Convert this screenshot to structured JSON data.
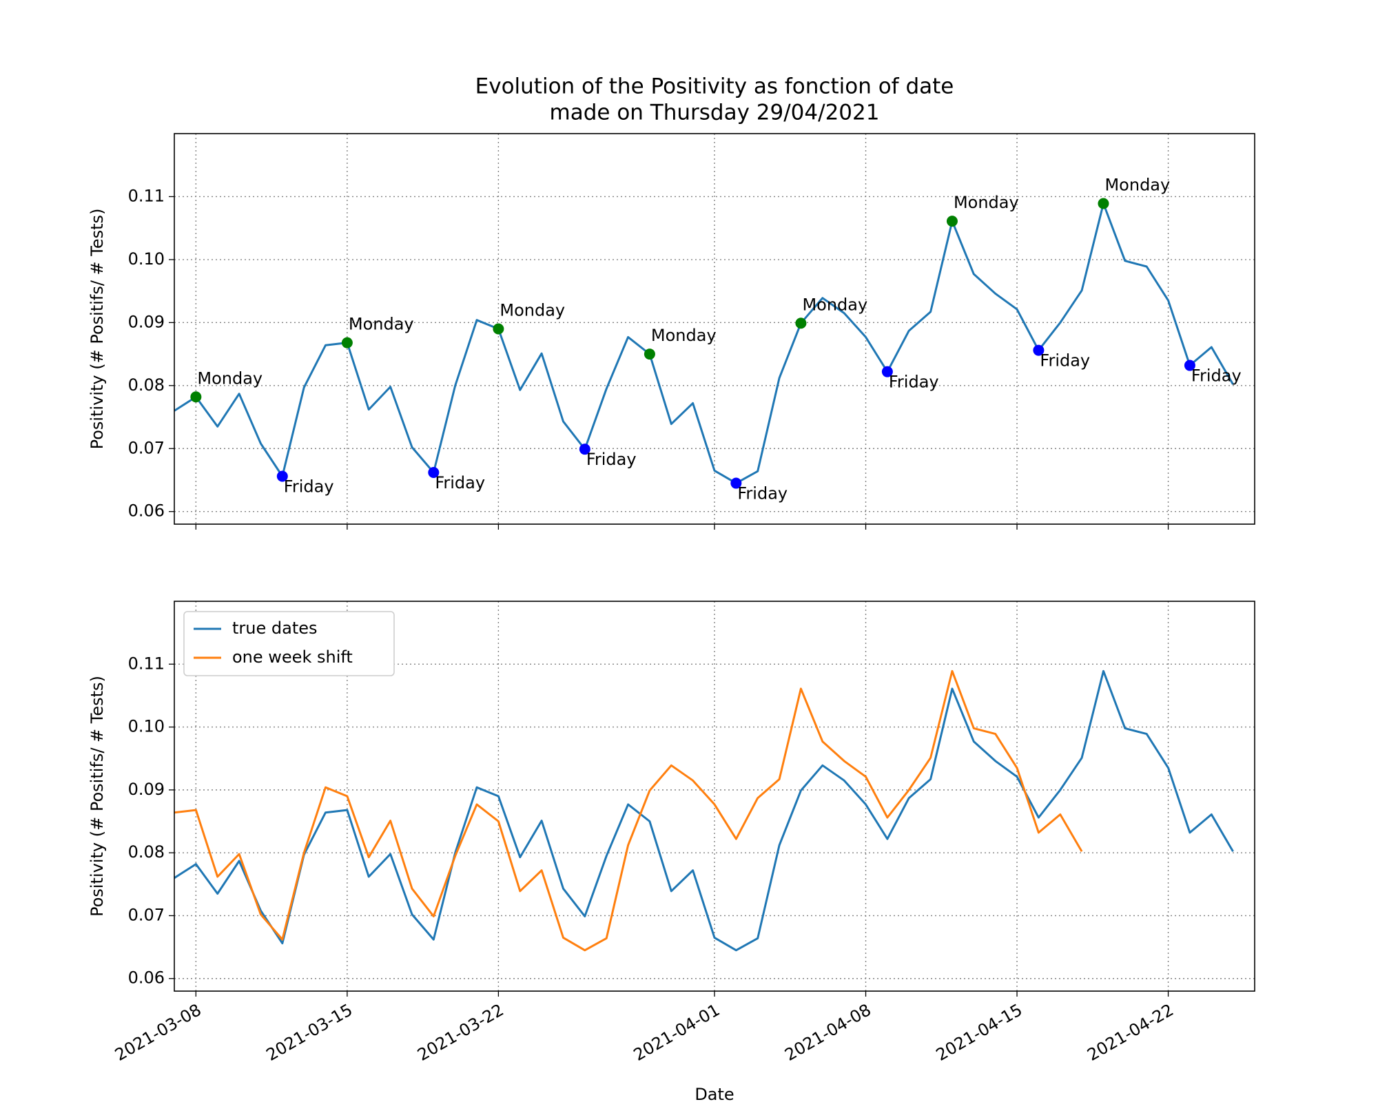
{
  "chart_data": [
    {
      "type": "line",
      "title": "Evolution of the Positivity as fonction of date",
      "subtitle": "made on Thursday 29/04/2021",
      "ylabel": "Positivity (# Positifs/ # Tests)",
      "xlim": [
        "2021-03-07",
        "2021-04-26"
      ],
      "ylim": [
        0.058,
        0.12
      ],
      "yticks": [
        0.06,
        0.07,
        0.08,
        0.09,
        {
          "value": 0.1,
          "label": "0.10"
        },
        0.11
      ],
      "grid": true,
      "series": [
        {
          "color": "#1f77b4",
          "x": [
            "2021-03-07",
            "2021-03-08",
            "2021-03-09",
            "2021-03-10",
            "2021-03-11",
            "2021-03-12",
            "2021-03-13",
            "2021-03-14",
            "2021-03-15",
            "2021-03-16",
            "2021-03-17",
            "2021-03-18",
            "2021-03-19",
            "2021-03-20",
            "2021-03-21",
            "2021-03-22",
            "2021-03-23",
            "2021-03-24",
            "2021-03-25",
            "2021-03-26",
            "2021-03-27",
            "2021-03-28",
            "2021-03-29",
            "2021-03-30",
            "2021-03-31",
            "2021-04-01",
            "2021-04-02",
            "2021-04-03",
            "2021-04-04",
            "2021-04-05",
            "2021-04-06",
            "2021-04-07",
            "2021-04-08",
            "2021-04-09",
            "2021-04-10",
            "2021-04-11",
            "2021-04-12",
            "2021-04-13",
            "2021-04-14",
            "2021-04-15",
            "2021-04-16",
            "2021-04-17",
            "2021-04-18",
            "2021-04-19",
            "2021-04-20",
            "2021-04-21",
            "2021-04-22",
            "2021-04-23",
            "2021-04-24",
            "2021-04-25"
          ],
          "values": [
            0.076,
            0.0782,
            0.0735,
            0.0787,
            0.0708,
            0.0656,
            0.0797,
            0.0864,
            0.0868,
            0.0762,
            0.0798,
            0.0702,
            0.0662,
            0.08,
            0.0904,
            0.089,
            0.0793,
            0.0851,
            0.0743,
            0.0699,
            0.0795,
            0.0877,
            0.085,
            0.0739,
            0.0772,
            0.0665,
            0.0645,
            0.0664,
            0.0812,
            0.0899,
            0.0939,
            0.0915,
            0.0877,
            0.0822,
            0.0887,
            0.0917,
            0.1061,
            0.0977,
            0.0946,
            0.0921,
            0.0856,
            0.09,
            0.0951,
            0.1089,
            0.0998,
            0.0989,
            0.0935,
            0.0832,
            0.0861,
            0.0802
          ]
        }
      ],
      "markers": [
        {
          "label": "Monday",
          "color": "green",
          "position": "above",
          "x": [
            "2021-03-08",
            "2021-03-15",
            "2021-03-22",
            "2021-03-29",
            "2021-04-05",
            "2021-04-12",
            "2021-04-19"
          ],
          "values": [
            0.0782,
            0.0868,
            0.089,
            0.085,
            0.0899,
            0.1061,
            0.1089
          ]
        },
        {
          "label": "Friday",
          "color": "blue",
          "position": "below",
          "x": [
            "2021-03-12",
            "2021-03-19",
            "2021-03-26",
            "2021-04-02",
            "2021-04-09",
            "2021-04-16",
            "2021-04-23"
          ],
          "values": [
            0.0656,
            0.0662,
            0.0699,
            0.0645,
            0.0822,
            0.0856,
            0.0832
          ]
        }
      ]
    },
    {
      "type": "line",
      "xlabel": "Date",
      "ylabel": "Positivity (# Positifs/ # Tests)",
      "xlim": [
        "2021-03-07",
        "2021-04-26"
      ],
      "xticks": [
        "2021-03-08",
        "2021-03-15",
        "2021-03-22",
        "2021-04-01",
        "2021-04-08",
        "2021-04-15",
        "2021-04-22"
      ],
      "ylim": [
        0.058,
        0.12
      ],
      "yticks": [
        0.06,
        0.07,
        0.08,
        0.09,
        {
          "value": 0.1,
          "label": "0.10"
        },
        0.11
      ],
      "grid": true,
      "legend": "upper left",
      "series": [
        {
          "name": "true dates",
          "color": "#1f77b4",
          "x": [
            "2021-03-07",
            "2021-03-08",
            "2021-03-09",
            "2021-03-10",
            "2021-03-11",
            "2021-03-12",
            "2021-03-13",
            "2021-03-14",
            "2021-03-15",
            "2021-03-16",
            "2021-03-17",
            "2021-03-18",
            "2021-03-19",
            "2021-03-20",
            "2021-03-21",
            "2021-03-22",
            "2021-03-23",
            "2021-03-24",
            "2021-03-25",
            "2021-03-26",
            "2021-03-27",
            "2021-03-28",
            "2021-03-29",
            "2021-03-30",
            "2021-03-31",
            "2021-04-01",
            "2021-04-02",
            "2021-04-03",
            "2021-04-04",
            "2021-04-05",
            "2021-04-06",
            "2021-04-07",
            "2021-04-08",
            "2021-04-09",
            "2021-04-10",
            "2021-04-11",
            "2021-04-12",
            "2021-04-13",
            "2021-04-14",
            "2021-04-15",
            "2021-04-16",
            "2021-04-17",
            "2021-04-18",
            "2021-04-19",
            "2021-04-20",
            "2021-04-21",
            "2021-04-22",
            "2021-04-23",
            "2021-04-24",
            "2021-04-25"
          ],
          "values": [
            0.076,
            0.0782,
            0.0735,
            0.0787,
            0.0708,
            0.0656,
            0.0797,
            0.0864,
            0.0868,
            0.0762,
            0.0798,
            0.0702,
            0.0662,
            0.08,
            0.0904,
            0.089,
            0.0793,
            0.0851,
            0.0743,
            0.0699,
            0.0795,
            0.0877,
            0.085,
            0.0739,
            0.0772,
            0.0665,
            0.0645,
            0.0664,
            0.0812,
            0.0899,
            0.0939,
            0.0915,
            0.0877,
            0.0822,
            0.0887,
            0.0917,
            0.1061,
            0.0977,
            0.0946,
            0.0921,
            0.0856,
            0.09,
            0.0951,
            0.1089,
            0.0998,
            0.0989,
            0.0935,
            0.0832,
            0.0861,
            0.0802
          ]
        },
        {
          "name": "one week shift",
          "color": "#ff7f0e",
          "x": [
            "2021-03-07",
            "2021-03-08",
            "2021-03-09",
            "2021-03-10",
            "2021-03-11",
            "2021-03-12",
            "2021-03-13",
            "2021-03-14",
            "2021-03-15",
            "2021-03-16",
            "2021-03-17",
            "2021-03-18",
            "2021-03-19",
            "2021-03-20",
            "2021-03-21",
            "2021-03-22",
            "2021-03-23",
            "2021-03-24",
            "2021-03-25",
            "2021-03-26",
            "2021-03-27",
            "2021-03-28",
            "2021-03-29",
            "2021-03-30",
            "2021-03-31",
            "2021-04-01",
            "2021-04-02",
            "2021-04-03",
            "2021-04-04",
            "2021-04-05",
            "2021-04-06",
            "2021-04-07",
            "2021-04-08",
            "2021-04-09",
            "2021-04-10",
            "2021-04-11",
            "2021-04-12",
            "2021-04-13",
            "2021-04-14",
            "2021-04-15",
            "2021-04-16",
            "2021-04-17",
            "2021-04-18"
          ],
          "values": [
            0.0864,
            0.0868,
            0.0762,
            0.0798,
            0.0702,
            0.0662,
            0.08,
            0.0904,
            0.089,
            0.0793,
            0.0851,
            0.0743,
            0.0699,
            0.0795,
            0.0877,
            0.085,
            0.0739,
            0.0772,
            0.0665,
            0.0645,
            0.0664,
            0.0812,
            0.0899,
            0.0939,
            0.0915,
            0.0877,
            0.0822,
            0.0887,
            0.0917,
            0.1061,
            0.0977,
            0.0946,
            0.0921,
            0.0856,
            0.09,
            0.0951,
            0.1089,
            0.0998,
            0.0989,
            0.0935,
            0.0832,
            0.0861,
            0.0802
          ]
        }
      ]
    }
  ]
}
